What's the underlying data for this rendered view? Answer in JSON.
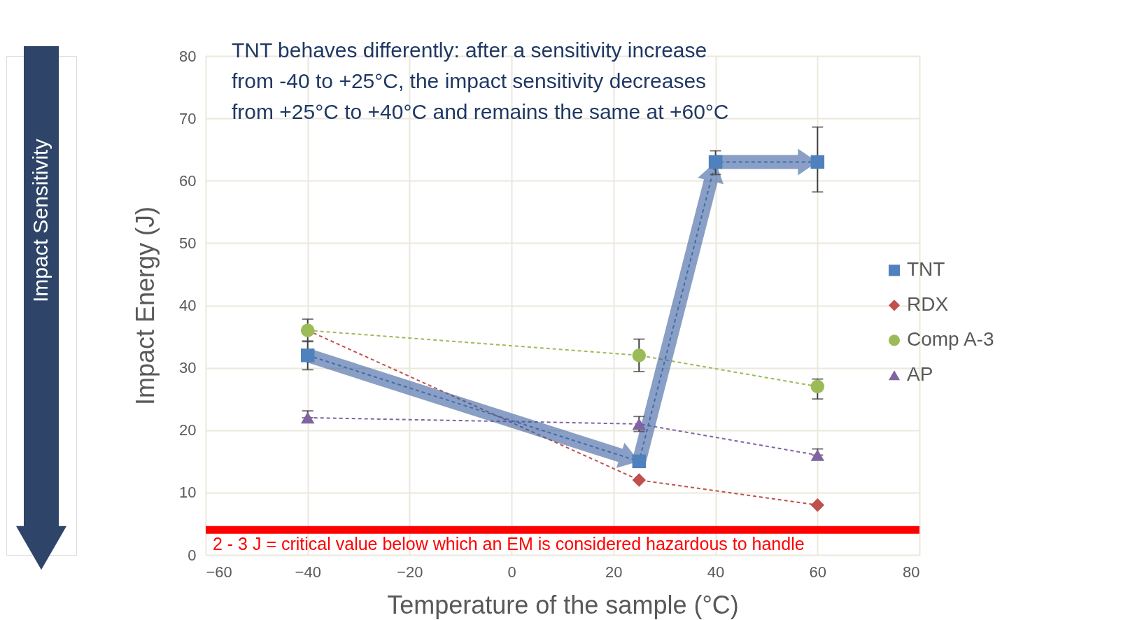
{
  "chart_data": {
    "type": "line",
    "title": "TNT behaves differently: after a sensitivity increase\nfrom -40 to +25°C, the impact sensitivity decreases\nfrom +25°C to +40°C and remains the same at +60°C",
    "xlabel": "Temperature of the sample (°C)",
    "ylabel": "Impact Energy (J)",
    "annotations": [
      "Impact Sensitivity"
    ],
    "xlim": [
      -60,
      80
    ],
    "xticks": [
      -60,
      -40,
      -20,
      0,
      20,
      40,
      60,
      80
    ],
    "ylim": [
      0,
      80
    ],
    "yticks": [
      0,
      10,
      20,
      30,
      40,
      50,
      60,
      70,
      80
    ],
    "grid": true,
    "legend": "right",
    "line_style": "dashed",
    "series": [
      {
        "name": "TNT",
        "color": "#4f81bd",
        "marker": "square",
        "x": [
          -40,
          25,
          40,
          60
        ],
        "values": [
          32,
          15,
          63,
          63
        ],
        "errors": [
          [
            29.7,
            34.3
          ],
          null,
          [
            61,
            64.8
          ],
          [
            58.2,
            68.6
          ]
        ]
      },
      {
        "name": "RDX",
        "color": "#c0504d",
        "marker": "diamond",
        "x": [
          -40,
          25,
          60
        ],
        "values": [
          36,
          12,
          8
        ]
      },
      {
        "name": "Comp A-3",
        "color": "#9bbb59",
        "marker": "circle",
        "x": [
          -40,
          25,
          60
        ],
        "values": [
          36,
          32,
          27
        ],
        "errors": [
          [
            34.2,
            37.8
          ],
          [
            29.4,
            34.6
          ],
          [
            25,
            28.2
          ]
        ]
      },
      {
        "name": "AP",
        "color": "#8064a2",
        "marker": "triangle",
        "x": [
          -40,
          25,
          60
        ],
        "values": [
          22,
          21,
          16
        ],
        "errors": [
          [
            22,
            23.1
          ],
          [
            19.8,
            22.2
          ],
          [
            16,
            17
          ]
        ]
      }
    ],
    "ref_lines": [
      {
        "axis": "y",
        "value": 4,
        "label": "2 - 3 J = critical value below which an EM is considered hazardous to handle",
        "color": "#ff0000"
      }
    ]
  }
}
